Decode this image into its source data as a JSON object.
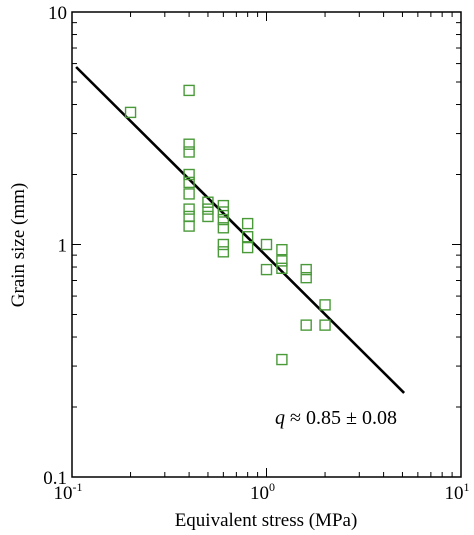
{
  "chart_data": {
    "type": "scatter",
    "title": "",
    "xlabel": "Equivalent stress (MPa)",
    "ylabel": "Grain size (mm)",
    "xscale": "log",
    "yscale": "log",
    "xlim": [
      0.1,
      10
    ],
    "ylim": [
      0.1,
      10
    ],
    "grid": false,
    "marker": "open-square",
    "marker_color": "#4a9a3a",
    "line_color": "#000000",
    "x_ticks": [
      {
        "base": "10",
        "exp": "-1",
        "value": 0.1
      },
      {
        "base": "10",
        "exp": "0",
        "value": 1
      },
      {
        "base": "10",
        "exp": "1",
        "value": 10
      }
    ],
    "y_ticks": [
      {
        "label": "0.1",
        "value": 0.1
      },
      {
        "label": "1",
        "value": 1
      },
      {
        "label": "10",
        "value": 10
      }
    ],
    "points": [
      [
        0.2,
        3.7
      ],
      [
        0.4,
        4.6
      ],
      [
        0.4,
        2.7
      ],
      [
        0.4,
        2.5
      ],
      [
        0.4,
        2.0
      ],
      [
        0.4,
        1.85
      ],
      [
        0.4,
        1.65
      ],
      [
        0.4,
        1.42
      ],
      [
        0.4,
        1.32
      ],
      [
        0.4,
        1.2
      ],
      [
        0.5,
        1.52
      ],
      [
        0.5,
        1.42
      ],
      [
        0.5,
        1.32
      ],
      [
        0.6,
        1.47
      ],
      [
        0.6,
        1.38
      ],
      [
        0.6,
        1.28
      ],
      [
        0.6,
        1.18
      ],
      [
        0.6,
        1.0
      ],
      [
        0.6,
        0.93
      ],
      [
        0.8,
        1.23
      ],
      [
        0.8,
        1.08
      ],
      [
        0.8,
        0.97
      ],
      [
        1.0,
        1.0
      ],
      [
        1.0,
        0.78
      ],
      [
        1.2,
        0.95
      ],
      [
        1.2,
        0.85
      ],
      [
        1.2,
        0.79
      ],
      [
        1.2,
        0.32
      ],
      [
        1.6,
        0.78
      ],
      [
        1.6,
        0.72
      ],
      [
        1.6,
        0.45
      ],
      [
        2.0,
        0.55
      ],
      [
        2.0,
        0.45
      ]
    ],
    "fit_line": {
      "x": [
        0.105,
        5.1
      ],
      "y": [
        5.8,
        0.23
      ]
    },
    "annotation": {
      "var": "q",
      "text": " ≈ 0.85 ± 0.08"
    }
  }
}
